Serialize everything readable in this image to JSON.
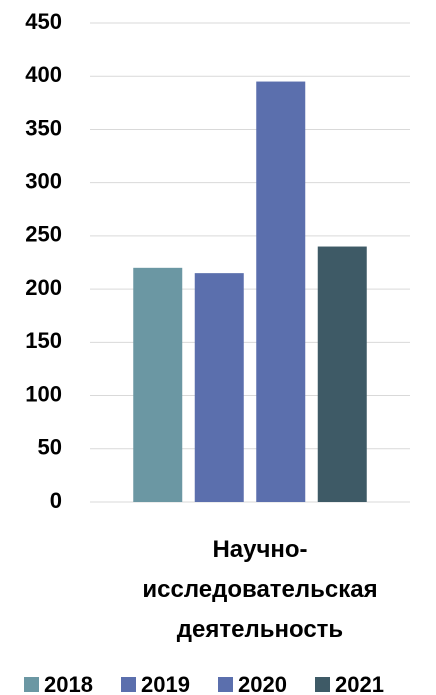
{
  "chart_data": {
    "type": "bar",
    "categories": [
      "Научно-исследовательская деятельность"
    ],
    "series": [
      {
        "name": "2018",
        "color": "#6b97a3",
        "values": [
          220
        ]
      },
      {
        "name": "2019",
        "color": "#5b6fad",
        "values": [
          215
        ]
      },
      {
        "name": "2020",
        "color": "#5b6fad",
        "values": [
          395
        ]
      },
      {
        "name": "2021",
        "color": "#3e5a66",
        "values": [
          240
        ]
      }
    ],
    "ylim": [
      0,
      450
    ],
    "yticks": [
      0,
      50,
      100,
      150,
      200,
      250,
      300,
      350,
      400,
      450
    ],
    "grid": true,
    "legend": "bottom"
  }
}
